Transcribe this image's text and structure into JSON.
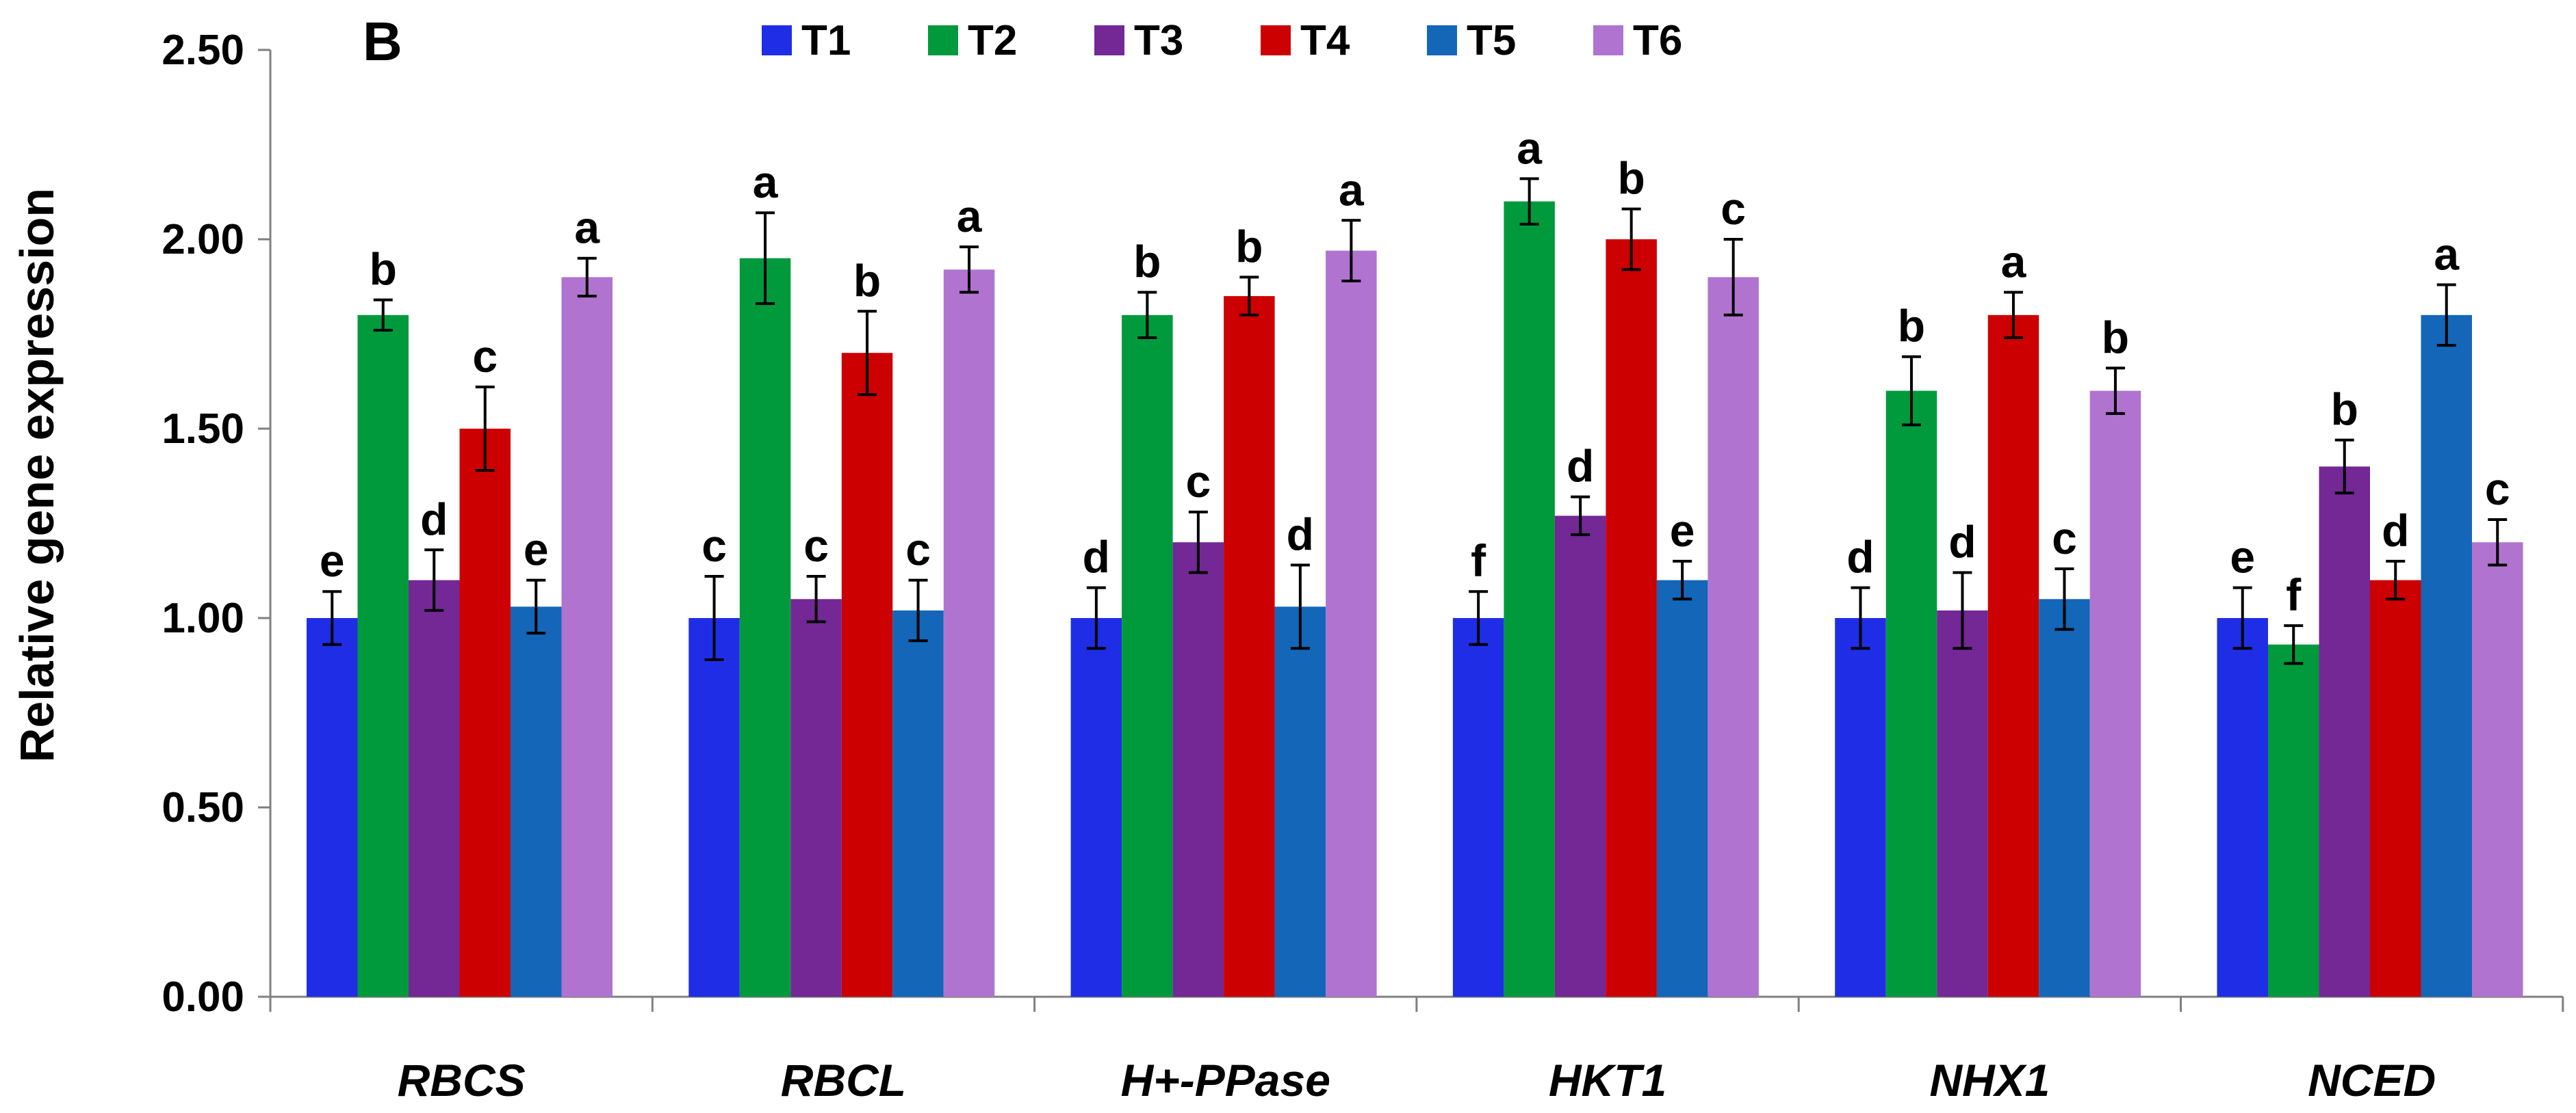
{
  "panel_label": "B",
  "colors": {
    "T1": "#1f2ee6",
    "T2": "#009a3d",
    "T3": "#732896",
    "T4": "#cc0000",
    "T5": "#1466b8",
    "T6": "#b074d0"
  },
  "chart_data": {
    "type": "bar",
    "ylabel": "Relative gene expression",
    "xlabel": "",
    "ylim": [
      0,
      2.5
    ],
    "yticks": [
      "0.00",
      "0.50",
      "1.00",
      "1.50",
      "2.00",
      "2.50"
    ],
    "legend_position": "top-center",
    "categories": [
      "RBCS",
      "RBCL",
      "H+-PPase",
      "HKT1",
      "NHX1",
      "NCED"
    ],
    "series": [
      {
        "name": "T1",
        "values": [
          1.0,
          1.0,
          1.0,
          1.0,
          1.0,
          1.0
        ],
        "errors": [
          0.07,
          0.11,
          0.08,
          0.07,
          0.08,
          0.08
        ],
        "letters": [
          "e",
          "c",
          "d",
          "f",
          "d",
          "e"
        ]
      },
      {
        "name": "T2",
        "values": [
          1.8,
          1.95,
          1.8,
          2.1,
          1.6,
          0.93
        ],
        "errors": [
          0.04,
          0.12,
          0.06,
          0.06,
          0.09,
          0.05
        ],
        "letters": [
          "b",
          "a",
          "b",
          "a",
          "b",
          "f"
        ]
      },
      {
        "name": "T3",
        "values": [
          1.1,
          1.05,
          1.2,
          1.27,
          1.02,
          1.4
        ],
        "errors": [
          0.08,
          0.06,
          0.08,
          0.05,
          0.1,
          0.07
        ],
        "letters": [
          "d",
          "c",
          "c",
          "d",
          "d",
          "b"
        ]
      },
      {
        "name": "T4",
        "values": [
          1.5,
          1.7,
          1.85,
          2.0,
          1.8,
          1.1
        ],
        "errors": [
          0.11,
          0.11,
          0.05,
          0.08,
          0.06,
          0.05
        ],
        "letters": [
          "c",
          "b",
          "b",
          "b",
          "a",
          "d"
        ]
      },
      {
        "name": "T5",
        "values": [
          1.03,
          1.02,
          1.03,
          1.1,
          1.05,
          1.8
        ],
        "errors": [
          0.07,
          0.08,
          0.11,
          0.05,
          0.08,
          0.08
        ],
        "letters": [
          "e",
          "c",
          "d",
          "e",
          "c",
          "a"
        ]
      },
      {
        "name": "T6",
        "values": [
          1.9,
          1.92,
          1.97,
          1.9,
          1.6,
          1.2
        ],
        "errors": [
          0.05,
          0.06,
          0.08,
          0.1,
          0.06,
          0.06
        ],
        "letters": [
          "a",
          "a",
          "a",
          "c",
          "b",
          "c"
        ]
      }
    ]
  }
}
